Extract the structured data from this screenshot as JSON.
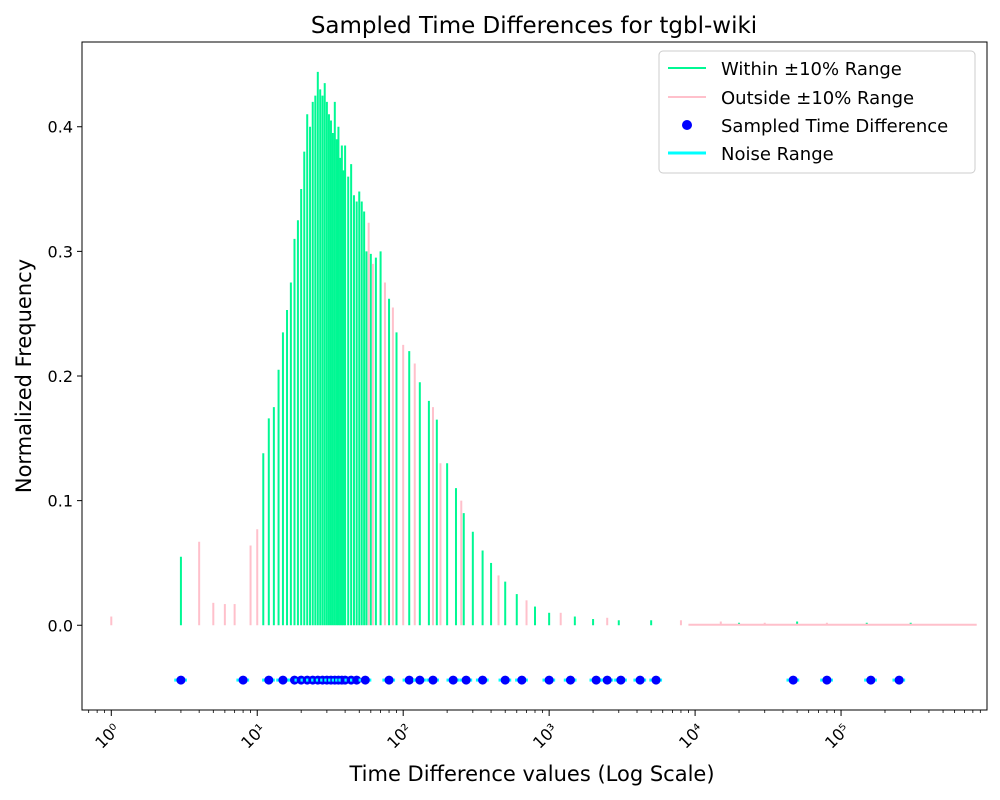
{
  "chart_data": {
    "type": "bar",
    "title": "Sampled Time Differences for tgbl-wiki",
    "xlabel": "Time Difference values (Log Scale)",
    "ylabel": "Normalized Frequency",
    "xscale": "log",
    "xlim": [
      0.63,
      1000000
    ],
    "ylim": [
      -0.068,
      0.468
    ],
    "grid": false,
    "legend_position": "top-right",
    "x_ticks": [
      {
        "value": 1,
        "label": "10⁰"
      },
      {
        "value": 10,
        "label": "10¹"
      },
      {
        "value": 100,
        "label": "10²"
      },
      {
        "value": 1000,
        "label": "10³"
      },
      {
        "value": 10000,
        "label": "10⁴"
      },
      {
        "value": 100000,
        "label": "10⁵"
      }
    ],
    "y_ticks": [
      {
        "value": 0.0,
        "label": "0.0"
      },
      {
        "value": 0.1,
        "label": "0.1"
      },
      {
        "value": 0.2,
        "label": "0.2"
      },
      {
        "value": 0.3,
        "label": "0.3"
      },
      {
        "value": 0.4,
        "label": "0.4"
      }
    ],
    "colors": {
      "within": "#00f893",
      "outside": "#ffc0cb",
      "sampled": "#0000ff",
      "noise": "#00ffff"
    },
    "legend": [
      {
        "label": "Within ±10% Range",
        "marker": "line",
        "color_key": "within"
      },
      {
        "label": "Outside ±10% Range",
        "marker": "line",
        "color_key": "outside"
      },
      {
        "label": "Sampled Time Difference",
        "marker": "dot",
        "color_key": "sampled"
      },
      {
        "label": "Noise Range",
        "marker": "line",
        "color_key": "noise"
      }
    ],
    "series": [
      {
        "name": "Within ±10% Range",
        "color_key": "within",
        "x": [
          3,
          11,
          12,
          13,
          14,
          15,
          16,
          17,
          18,
          19,
          20,
          21,
          22,
          23,
          24,
          25,
          26,
          27,
          28,
          29,
          30,
          31,
          32,
          33,
          34,
          35,
          36,
          37,
          38,
          39,
          40,
          42,
          44,
          46,
          48,
          50,
          52,
          54,
          56,
          60,
          65,
          70,
          80,
          90,
          110,
          130,
          150,
          170,
          200,
          230,
          260,
          300,
          350,
          400,
          500,
          600,
          800,
          1000,
          1500,
          2000,
          3000,
          5000,
          20000,
          50000,
          150000,
          300000
        ],
        "values": [
          0.055,
          0.138,
          0.166,
          0.175,
          0.205,
          0.235,
          0.253,
          0.275,
          0.31,
          0.325,
          0.35,
          0.38,
          0.41,
          0.4,
          0.42,
          0.425,
          0.444,
          0.43,
          0.425,
          0.435,
          0.42,
          0.41,
          0.405,
          0.395,
          0.42,
          0.39,
          0.4,
          0.375,
          0.385,
          0.365,
          0.385,
          0.36,
          0.37,
          0.345,
          0.34,
          0.348,
          0.34,
          0.332,
          0.3,
          0.298,
          0.295,
          0.3,
          0.262,
          0.235,
          0.22,
          0.195,
          0.18,
          0.165,
          0.13,
          0.11,
          0.09,
          0.075,
          0.06,
          0.05,
          0.035,
          0.025,
          0.015,
          0.01,
          0.007,
          0.005,
          0.004,
          0.004,
          0.002,
          0.003,
          0.002,
          0.002
        ]
      },
      {
        "name": "Outside ±10% Range",
        "color_key": "outside",
        "x": [
          1,
          4,
          5,
          6,
          7,
          9,
          10,
          58,
          62,
          75,
          85,
          100,
          120,
          160,
          180,
          250,
          450,
          700,
          1200,
          2500,
          8000,
          15000,
          30000,
          80000,
          200000,
          500000,
          800000
        ],
        "values": [
          0.007,
          0.067,
          0.018,
          0.017,
          0.017,
          0.064,
          0.077,
          0.323,
          0.29,
          0.275,
          0.255,
          0.225,
          0.21,
          0.175,
          0.13,
          0.1,
          0.04,
          0.02,
          0.01,
          0.006,
          0.004,
          0.003,
          0.002,
          0.002,
          0.001,
          0.001,
          0.001
        ]
      }
    ],
    "sampled_time_differences": {
      "name": "Sampled Time Difference",
      "y": -0.044,
      "x": [
        3,
        8,
        12,
        15,
        18,
        20,
        22,
        24,
        26,
        28,
        30,
        32,
        34,
        36,
        38,
        40,
        44,
        48,
        55,
        80,
        110,
        130,
        160,
        220,
        270,
        350,
        500,
        650,
        1000,
        1400,
        2100,
        2500,
        3100,
        4200,
        5400,
        47000,
        80000,
        160000,
        250000
      ]
    }
  }
}
